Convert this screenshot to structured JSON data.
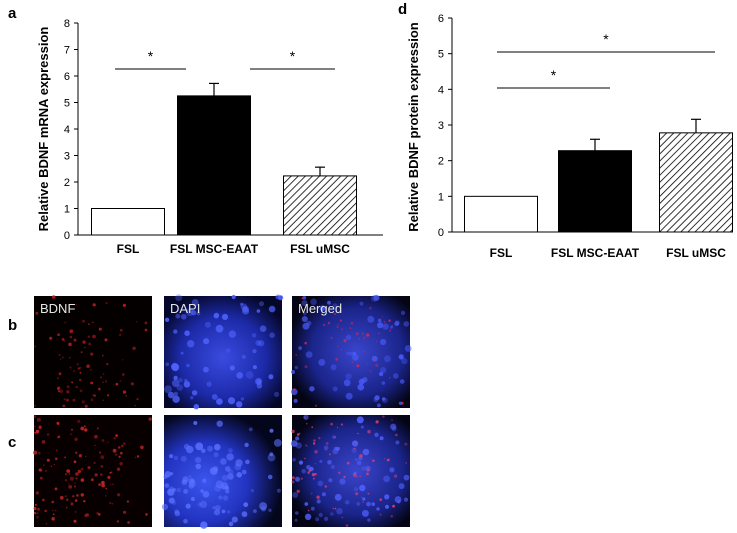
{
  "panels": {
    "a": "a",
    "b": "b",
    "c": "c",
    "d": "d"
  },
  "chart_data": [
    {
      "panel": "a",
      "type": "bar",
      "categories": [
        "FSL",
        "FSL MSC-EAAT",
        "FSL uMSC"
      ],
      "values": [
        1.0,
        5.25,
        2.23
      ],
      "errors": [
        0,
        0.47,
        0.33
      ],
      "patterns": [
        "white",
        "black",
        "hatched"
      ],
      "ylabel": "Relative BDNF mRNA expression",
      "ylim": [
        0,
        8
      ],
      "yticks": [
        0,
        1,
        2,
        3,
        4,
        5,
        6,
        7,
        8
      ],
      "significance": [
        {
          "label": "*",
          "between": [
            "FSL",
            "FSL MSC-EAAT"
          ]
        },
        {
          "label": "*",
          "between": [
            "FSL MSC-EAAT",
            "FSL uMSC"
          ]
        }
      ]
    },
    {
      "panel": "d",
      "type": "bar",
      "categories": [
        "FSL",
        "FSL MSC-EAAT",
        "FSL uMSC"
      ],
      "values": [
        1.0,
        2.28,
        2.78
      ],
      "errors": [
        0,
        0.32,
        0.38
      ],
      "patterns": [
        "white",
        "black",
        "hatched"
      ],
      "ylabel": "Relative BDNF protein expression",
      "ylim": [
        0,
        6
      ],
      "yticks": [
        0,
        1,
        2,
        3,
        4,
        5,
        6
      ],
      "significance": [
        {
          "label": "*",
          "between": [
            "FSL",
            "FSL MSC-EAAT"
          ]
        },
        {
          "label": "*",
          "between": [
            "FSL",
            "FSL uMSC"
          ]
        }
      ]
    }
  ],
  "micrographs": {
    "labels": [
      "BDNF",
      "DAPI",
      "Merged"
    ]
  }
}
